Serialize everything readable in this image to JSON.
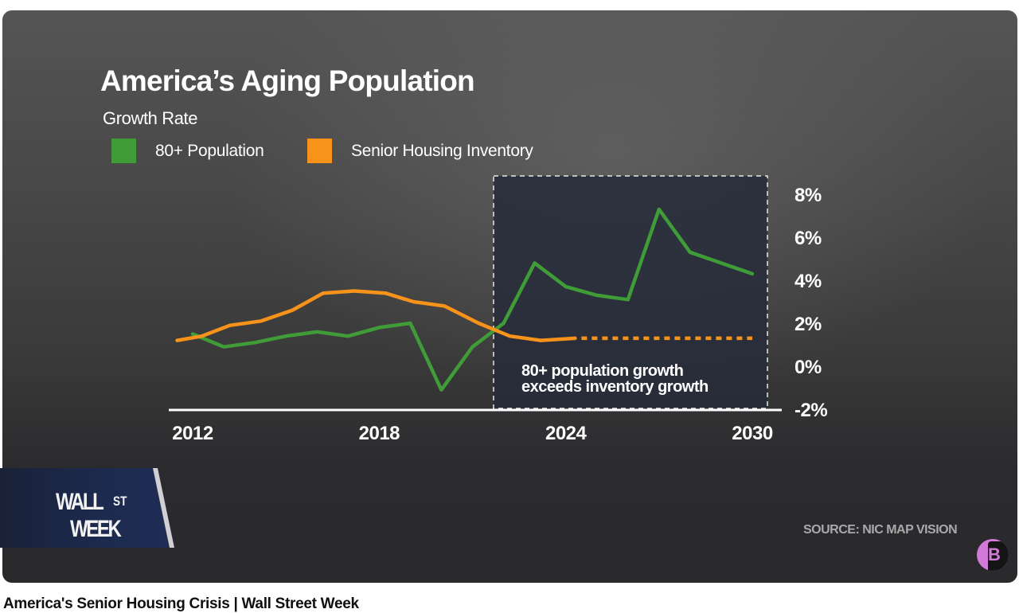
{
  "video": {
    "title": "America's Senior Housing Crisis | Wall Street Week"
  },
  "show_logo": {
    "line1": "WALL",
    "superscript": "ST",
    "line2": "WEEK"
  },
  "brand_badge": {
    "letter": "B"
  },
  "source_note": "SOURCE: NIC MAP VISION",
  "colors": {
    "green": "#3f9c37",
    "orange": "#f7931b",
    "highlight_fill": "#262b3a",
    "text": "#ffffff"
  },
  "chart_data": {
    "type": "line",
    "title": "America’s Aging Population",
    "subtitle": "Growth Rate",
    "xlabel": "",
    "ylabel": "",
    "x_ticks": [
      "2012",
      "2018",
      "2024",
      "2030"
    ],
    "x_range": [
      2011.5,
      2030
    ],
    "y_ticks": [
      "8%",
      "6%",
      "4%",
      "2%",
      "0%",
      "-2%"
    ],
    "y_range": [
      -2,
      8
    ],
    "y_axis_position": "right",
    "grid": false,
    "legend_position": "top-left",
    "series": [
      {
        "name": "80+ Population",
        "color": "#3f9c37",
        "x": [
          2012,
          2013,
          2014,
          2015,
          2016,
          2017,
          2018,
          2019,
          2020,
          2021,
          2022,
          2023,
          2024,
          2025,
          2026,
          2027,
          2028,
          2029,
          2030
        ],
        "values": [
          1.5,
          0.9,
          1.1,
          1.4,
          1.6,
          1.4,
          1.8,
          2.0,
          -1.1,
          0.9,
          2.0,
          4.8,
          3.7,
          3.3,
          3.1,
          7.3,
          5.3,
          4.8,
          4.3
        ]
      },
      {
        "name": "Senior Housing Inventory",
        "color": "#f7931b",
        "x": [
          2011.5,
          2012.3,
          2013.2,
          2014.2,
          2015.2,
          2016.2,
          2017.2,
          2018.2,
          2019.1,
          2020.1,
          2021.2,
          2022.2,
          2023.2,
          2024.3
        ],
        "values": [
          1.2,
          1.4,
          1.9,
          2.1,
          2.6,
          3.4,
          3.5,
          3.4,
          3.0,
          2.8,
          2.0,
          1.4,
          1.2,
          1.3
        ],
        "projection": {
          "style": "dashed",
          "x": [
            2024.3,
            2030
          ],
          "values": [
            1.3,
            1.3
          ]
        }
      }
    ],
    "annotations": [
      {
        "type": "highlight-box",
        "x_range": [
          2021.4,
          2030.5
        ],
        "text_line1": "80+ population growth",
        "text_line2": "exceeds inventory growth"
      }
    ]
  }
}
